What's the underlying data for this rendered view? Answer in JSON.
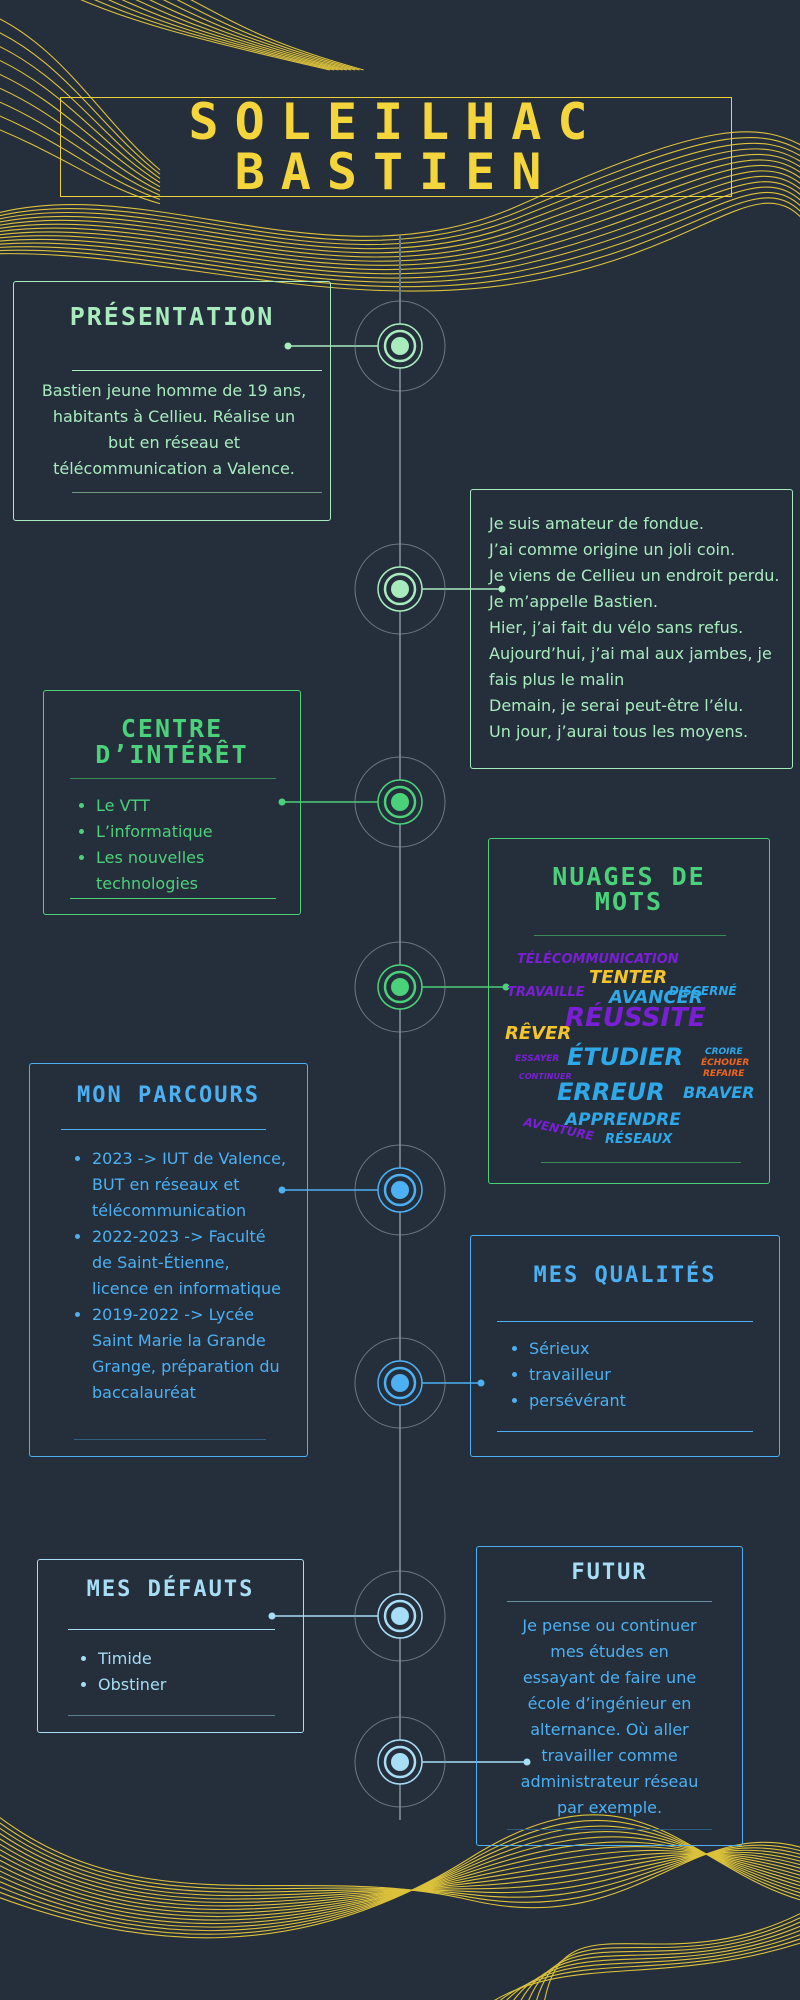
{
  "header": {
    "title_line1": "SOLEILHAC",
    "title_line2": "BASTIEN"
  },
  "colors": {
    "background": "#252f3c",
    "gold": "#f4d63c",
    "mint": "#a8ecbe",
    "green": "#4bd17a",
    "blue": "#4cb0f2",
    "light_blue": "#a7ddf5",
    "purple": "#7a1fd6",
    "orange": "#f0641e"
  },
  "presentation": {
    "title": "PRÉSENTATION",
    "text": "Bastien jeune homme de 19 ans, habitants à Cellieu.  Réalise un but en réseau et télécommunication a Valence."
  },
  "poem": {
    "lines": [
      "Je suis amateur de fondue.",
      "J’ai comme origine un joli coin.",
      "Je viens de Cellieu un endroit perdu.",
      "Je m’appelle Bastien.",
      "Hier, j’ai fait du vélo sans refus.",
      "Aujourd’hui, j’ai mal aux jambes, je fais plus le malin",
      "Demain, je serai peut-être l’élu.",
      "Un jour, j’aurai tous les moyens."
    ]
  },
  "interests": {
    "title_line1": "CENTRE",
    "title_line2": "D’INTÉRÊT",
    "items": [
      "Le VTT",
      "L’informatique",
      "Les nouvelles technologies"
    ]
  },
  "wordcloud": {
    "title_line1": "NUAGES DE",
    "title_line2": "MOTS",
    "words": [
      "TÉLÉCOMMUNICATION",
      "TENTER",
      "TRAVAILLE",
      "AVANCER",
      "DISCERNÉ",
      "RÉUSSITE",
      "RÊVER",
      "ÉTUDIER",
      "CROIRE",
      "ÉCHOUER",
      "REFAIRE",
      "ESSAYER",
      "CONTINUER",
      "ERREUR",
      "BRAVER",
      "APPRENDRE",
      "AVENTURE",
      "RÉSEAUX"
    ]
  },
  "parcours": {
    "title": "MON PARCOURS",
    "items": [
      "2023 -> IUT de Valence, BUT en réseaux et télécommunication",
      "2022-2023 -> Faculté de Saint-Étienne, licence en informatique",
      "2019-2022 -> Lycée Saint Marie la Grande Grange, préparation du baccalauréat"
    ]
  },
  "qualites": {
    "title": "MES QUALITÉS",
    "items": [
      "Sérieux",
      "travailleur",
      "persévérant"
    ]
  },
  "defauts": {
    "title": "MES DÉFAUTS",
    "items": [
      "Timide",
      "Obstiner"
    ]
  },
  "futur": {
    "title": "FUTUR",
    "text": "Je pense ou continuer mes études en essayant de faire une école d’ingénieur en alternance. Où aller travailler comme administrateur réseau par exemple."
  }
}
